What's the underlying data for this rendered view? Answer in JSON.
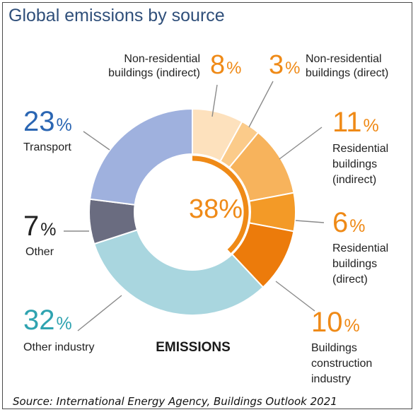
{
  "title": "Global emissions by source",
  "source": "Source: International Energy Agency, Buildings Outlook 2021",
  "colors": {
    "title": "#2f4f7a",
    "orange_text": "#ef8a17",
    "blue_text": "#2b66b3",
    "teal_text": "#2fa3b0",
    "dark_text": "#222222"
  },
  "chart_data": {
    "type": "pie",
    "style": "donut",
    "title": "Global emissions by source",
    "center_label": "EMISSIONS",
    "buildings_total_label": "38%",
    "buildings_total_value": 38,
    "slices": [
      {
        "key": "nonres_indirect",
        "name_lines": [
          "Non-residential",
          "buildings (indirect)"
        ],
        "value": 8,
        "pct_label": "8",
        "color": "#fde1bd",
        "text_color": "#ef8a17"
      },
      {
        "key": "nonres_direct",
        "name_lines": [
          "Non-residential",
          "buildings (direct)"
        ],
        "value": 3,
        "pct_label": "3",
        "color": "#fbcb8a",
        "text_color": "#ef8a17"
      },
      {
        "key": "res_indirect",
        "name_lines": [
          "Residential",
          "buildings",
          "(indirect)"
        ],
        "value": 11,
        "pct_label": "11",
        "color": "#f7b35c",
        "text_color": "#ef8a17"
      },
      {
        "key": "res_direct",
        "name_lines": [
          "Residential",
          "buildings",
          "(direct)"
        ],
        "value": 6,
        "pct_label": "6",
        "color": "#f39a27",
        "text_color": "#ef8a17"
      },
      {
        "key": "construction",
        "name_lines": [
          "Buildings",
          "construction",
          "industry"
        ],
        "value": 10,
        "pct_label": "10",
        "color": "#ec7b0b",
        "text_color": "#ef8a17"
      },
      {
        "key": "other_industry",
        "name_lines": [
          "Other industry"
        ],
        "value": 32,
        "pct_label": "32",
        "color": "#a9d6df",
        "text_color": "#2fa3b0"
      },
      {
        "key": "other",
        "name_lines": [
          "Other"
        ],
        "value": 7,
        "pct_label": "7",
        "color": "#6a6c80",
        "text_color": "#222222"
      },
      {
        "key": "transport",
        "name_lines": [
          "Transport"
        ],
        "value": 23,
        "pct_label": "23",
        "color": "#9fb1de",
        "text_color": "#2b66b3"
      }
    ]
  }
}
